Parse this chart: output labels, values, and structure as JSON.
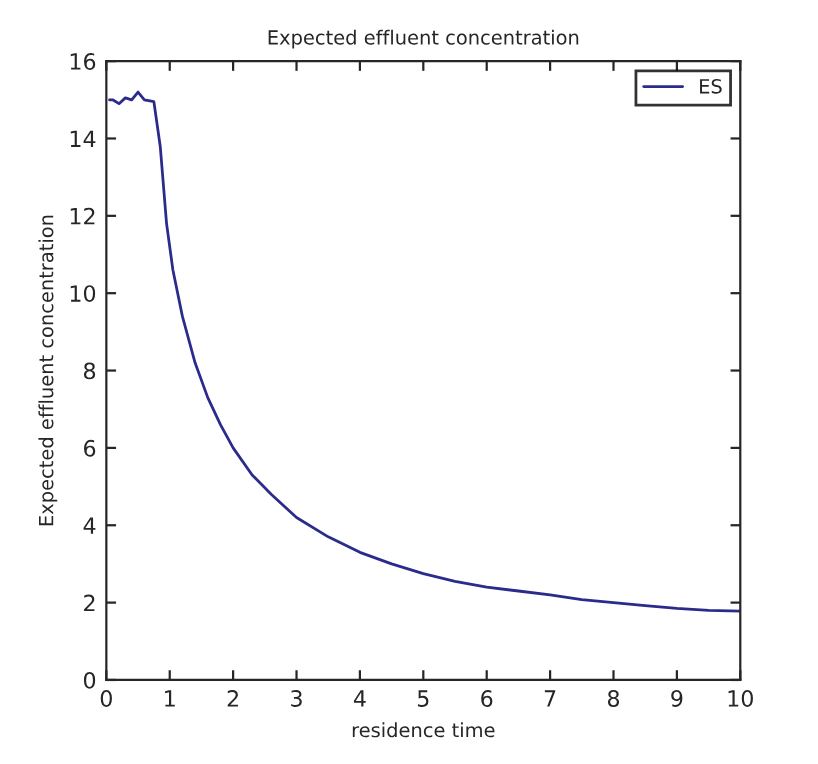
{
  "chart_data": {
    "type": "line",
    "title": "Expected effluent concentration",
    "xlabel": "residence time",
    "ylabel": "Expected effluent concentration",
    "series": [
      {
        "name": "ES",
        "color": "#2b2b8c",
        "x": [
          0.05,
          0.1,
          0.2,
          0.3,
          0.4,
          0.5,
          0.6,
          0.75,
          0.85,
          0.95,
          1.05,
          1.2,
          1.4,
          1.6,
          1.8,
          2.0,
          2.3,
          2.6,
          3.0,
          3.5,
          4.0,
          4.5,
          5.0,
          5.5,
          6.0,
          6.5,
          7.0,
          7.5,
          8.0,
          8.5,
          9.0,
          9.5,
          10.0
        ],
        "values": [
          15.0,
          15.0,
          14.9,
          15.05,
          15.0,
          15.2,
          15.0,
          14.95,
          13.8,
          11.8,
          10.6,
          9.4,
          8.2,
          7.3,
          6.6,
          6.0,
          5.3,
          4.8,
          4.2,
          3.7,
          3.3,
          3.0,
          2.75,
          2.55,
          2.4,
          2.3,
          2.2,
          2.08,
          2.0,
          1.92,
          1.85,
          1.8,
          1.78
        ]
      }
    ],
    "xlim": [
      0,
      10
    ],
    "ylim": [
      0,
      16
    ],
    "xticks": [
      0,
      1,
      2,
      3,
      4,
      5,
      6,
      7,
      8,
      9,
      10
    ],
    "yticks": [
      0,
      2,
      4,
      6,
      8,
      10,
      12,
      14,
      16
    ],
    "legend": "top right",
    "grid": false,
    "marker": "none",
    "line_style": "solid"
  }
}
